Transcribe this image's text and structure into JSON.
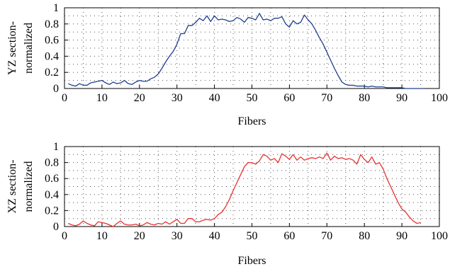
{
  "chart_data": [
    {
      "type": "line",
      "xlabel": "Fibers",
      "ylabel_lines": [
        "YZ section-",
        "normalized"
      ],
      "xlim": [
        0,
        100
      ],
      "ylim": [
        0,
        1
      ],
      "xticks": [
        0,
        10,
        20,
        30,
        40,
        50,
        60,
        70,
        80,
        90,
        100
      ],
      "yticks": [
        0,
        0.2,
        0.4,
        0.6,
        0.8,
        1
      ],
      "ytick_labels": [
        "0",
        "0.2",
        "0.4",
        "0.6",
        "0.8",
        "1"
      ],
      "grid": "dotted",
      "color": "#1f3f8f",
      "series": [
        {
          "x": [
            1,
            2,
            3,
            4,
            5,
            6,
            7,
            8,
            9,
            10,
            11,
            12,
            13,
            14,
            15,
            16,
            17,
            18,
            19,
            20,
            21,
            22,
            23,
            24,
            25,
            26,
            27,
            28,
            29,
            30,
            31,
            32,
            33,
            34,
            35,
            36,
            37,
            38,
            39,
            40,
            41,
            42,
            43,
            44,
            45,
            46,
            47,
            48,
            49,
            50,
            51,
            52,
            53,
            54,
            55,
            56,
            57,
            58,
            59,
            60,
            61,
            62,
            63,
            64,
            65,
            66,
            67,
            68,
            69,
            70,
            71,
            72,
            73,
            74,
            75,
            76,
            77,
            78,
            79,
            80,
            81,
            82,
            83,
            84,
            85,
            86,
            87,
            88,
            89,
            90,
            91,
            92,
            93,
            94,
            95,
            96
          ],
          "y": [
            0.06,
            0.04,
            0.03,
            0.06,
            0.04,
            0.04,
            0.07,
            0.08,
            0.09,
            0.1,
            0.07,
            0.05,
            0.08,
            0.06,
            0.07,
            0.1,
            0.06,
            0.05,
            0.08,
            0.1,
            0.09,
            0.09,
            0.12,
            0.14,
            0.18,
            0.25,
            0.33,
            0.4,
            0.46,
            0.55,
            0.68,
            0.68,
            0.78,
            0.78,
            0.82,
            0.87,
            0.84,
            0.9,
            0.83,
            0.9,
            0.85,
            0.86,
            0.85,
            0.83,
            0.84,
            0.88,
            0.86,
            0.82,
            0.88,
            0.87,
            0.85,
            0.93,
            0.85,
            0.86,
            0.84,
            0.87,
            0.87,
            0.89,
            0.8,
            0.76,
            0.84,
            0.8,
            0.82,
            0.91,
            0.85,
            0.8,
            0.72,
            0.63,
            0.55,
            0.45,
            0.35,
            0.25,
            0.16,
            0.08,
            0.05,
            0.04,
            0.04,
            0.03,
            0.03,
            0.03,
            0.02,
            0.03,
            0.02,
            0.02,
            0.02,
            0.01,
            0.01,
            0.01,
            0.01,
            0.01,
            0.0,
            0.0,
            0.0,
            0.0,
            0.0,
            0.0
          ]
        }
      ]
    },
    {
      "type": "line",
      "xlabel": "Fibers",
      "ylabel_lines": [
        "XZ section-",
        "normalized"
      ],
      "xlim": [
        0,
        100
      ],
      "ylim": [
        0,
        1
      ],
      "xticks": [
        0,
        10,
        20,
        30,
        40,
        50,
        60,
        70,
        80,
        90,
        100
      ],
      "yticks": [
        0,
        0.2,
        0.4,
        0.6,
        0.8,
        1
      ],
      "ytick_labels": [
        "0",
        "0.2",
        "0.4",
        "0.6",
        "0.8",
        "1"
      ],
      "grid": "dotted",
      "color": "#e8312f",
      "series": [
        {
          "x": [
            1,
            2,
            3,
            4,
            5,
            6,
            7,
            8,
            9,
            10,
            11,
            12,
            13,
            14,
            15,
            16,
            17,
            18,
            19,
            20,
            21,
            22,
            23,
            24,
            25,
            26,
            27,
            28,
            29,
            30,
            31,
            32,
            33,
            34,
            35,
            36,
            37,
            38,
            39,
            40,
            41,
            42,
            43,
            44,
            45,
            46,
            47,
            48,
            49,
            50,
            51,
            52,
            53,
            54,
            55,
            56,
            57,
            58,
            59,
            60,
            61,
            62,
            63,
            64,
            65,
            66,
            67,
            68,
            69,
            70,
            71,
            72,
            73,
            74,
            75,
            76,
            77,
            78,
            79,
            80,
            81,
            82,
            83,
            84,
            85,
            86,
            87,
            88,
            89,
            90,
            91,
            92,
            93,
            94,
            95
          ],
          "y": [
            0.04,
            0.02,
            0.01,
            0.03,
            0.07,
            0.04,
            0.02,
            0.01,
            0.06,
            0.05,
            0.04,
            0.02,
            0.0,
            0.04,
            0.07,
            0.03,
            0.02,
            0.02,
            0.03,
            0.01,
            0.02,
            0.05,
            0.03,
            0.02,
            0.04,
            0.03,
            0.06,
            0.03,
            0.06,
            0.09,
            0.04,
            0.04,
            0.1,
            0.1,
            0.06,
            0.06,
            0.08,
            0.09,
            0.08,
            0.1,
            0.15,
            0.18,
            0.25,
            0.34,
            0.45,
            0.55,
            0.65,
            0.75,
            0.8,
            0.8,
            0.78,
            0.82,
            0.9,
            0.88,
            0.83,
            0.85,
            0.8,
            0.91,
            0.88,
            0.84,
            0.9,
            0.83,
            0.87,
            0.83,
            0.85,
            0.86,
            0.85,
            0.87,
            0.85,
            0.92,
            0.83,
            0.88,
            0.85,
            0.86,
            0.84,
            0.85,
            0.83,
            0.78,
            0.9,
            0.84,
            0.8,
            0.87,
            0.78,
            0.8,
            0.72,
            0.6,
            0.5,
            0.4,
            0.3,
            0.22,
            0.18,
            0.12,
            0.07,
            0.04,
            0.05
          ]
        }
      ]
    }
  ]
}
